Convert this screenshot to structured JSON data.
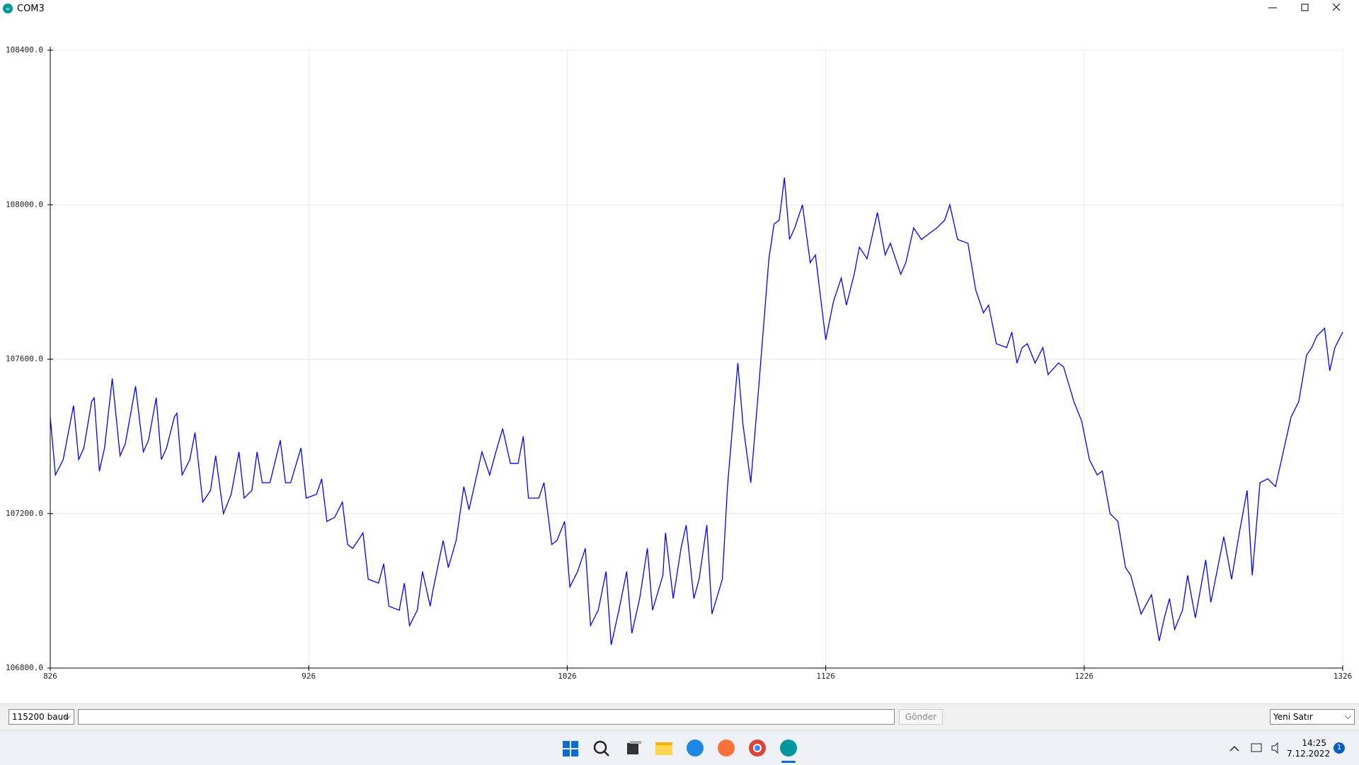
{
  "window": {
    "title": "COM3"
  },
  "chart_data": {
    "type": "line",
    "x": [
      826,
      828,
      831,
      835,
      837,
      839,
      842,
      843,
      845,
      847,
      850,
      853,
      855,
      859,
      862,
      864,
      867,
      869,
      871,
      874,
      875,
      877,
      880,
      882,
      885,
      888,
      890,
      893,
      896,
      899,
      901,
      904,
      906,
      908,
      911,
      915,
      917,
      919,
      923,
      925,
      929,
      931,
      933,
      936,
      939,
      941,
      943,
      947,
      949,
      953,
      955,
      957,
      961,
      963,
      965,
      968,
      970,
      973,
      974,
      978,
      980,
      983,
      986,
      988,
      993,
      996,
      998,
      1001,
      1004,
      1007,
      1009,
      1011,
      1015,
      1017,
      1020,
      1022,
      1025,
      1027,
      1030,
      1033,
      1035,
      1038,
      1041,
      1043,
      1046,
      1049,
      1051,
      1054,
      1057,
      1059,
      1063,
      1064,
      1067,
      1070,
      1072,
      1075,
      1077,
      1080,
      1082,
      1086,
      1088,
      1092,
      1094,
      1097,
      1100,
      1104,
      1106,
      1108,
      1110,
      1112,
      1114,
      1117,
      1120,
      1122,
      1126,
      1129,
      1132,
      1134,
      1137,
      1139,
      1142,
      1146,
      1149,
      1151,
      1155,
      1157,
      1160,
      1163,
      1165,
      1169,
      1172,
      1174,
      1177,
      1181,
      1184,
      1187,
      1189,
      1192,
      1196,
      1198,
      1200,
      1202,
      1204,
      1207,
      1210,
      1212,
      1216,
      1218,
      1222,
      1225,
      1228,
      1231,
      1233,
      1236,
      1239,
      1242,
      1244,
      1248,
      1252,
      1255,
      1257,
      1259,
      1261,
      1264,
      1266,
      1269,
      1273,
      1275,
      1280,
      1283,
      1286,
      1289,
      1291,
      1294,
      1297,
      1300,
      1303,
      1306,
      1309,
      1312,
      1314,
      1316,
      1319,
      1321,
      1323,
      1326
    ],
    "values": [
      107450,
      107300,
      107340,
      107480,
      107340,
      107370,
      107490,
      107500,
      107310,
      107370,
      107550,
      107350,
      107380,
      107530,
      107360,
      107390,
      107500,
      107340,
      107370,
      107450,
      107460,
      107300,
      107340,
      107410,
      107230,
      107260,
      107350,
      107200,
      107250,
      107360,
      107240,
      107260,
      107360,
      107280,
      107280,
      107390,
      107280,
      107280,
      107370,
      107240,
      107250,
      107290,
      107180,
      107190,
      107230,
      107120,
      107110,
      107150,
      107030,
      107020,
      107070,
      106960,
      106950,
      107020,
      106910,
      106950,
      107050,
      106960,
      107000,
      107130,
      107060,
      107130,
      107270,
      107210,
      107360,
      107300,
      107350,
      107420,
      107330,
      107330,
      107400,
      107240,
      107240,
      107280,
      107120,
      107130,
      107180,
      107010,
      107050,
      107110,
      106910,
      106950,
      107050,
      106860,
      106950,
      107050,
      106890,
      106980,
      107110,
      106950,
      107040,
      107150,
      106980,
      107110,
      107170,
      106980,
      107030,
      107170,
      106940,
      107030,
      107270,
      107590,
      107430,
      107280,
      107520,
      107860,
      107950,
      107960,
      108070,
      107910,
      107940,
      108000,
      107850,
      107870,
      107650,
      107750,
      107810,
      107740,
      107820,
      107890,
      107860,
      107980,
      107870,
      107900,
      107820,
      107850,
      107940,
      107910,
      107920,
      107940,
      107960,
      108000,
      107910,
      107900,
      107780,
      107720,
      107740,
      107640,
      107630,
      107670,
      107590,
      107630,
      107640,
      107590,
      107630,
      107560,
      107590,
      107580,
      107490,
      107440,
      107340,
      107300,
      107310,
      107200,
      107180,
      107060,
      107040,
      106940,
      106990,
      106870,
      106930,
      106980,
      106900,
      106950,
      107040,
      106930,
      107080,
      106970,
      107140,
      107030,
      107150,
      107260,
      107040,
      107280,
      107290,
      107270,
      107360,
      107450,
      107490,
      107610,
      107630,
      107660,
      107680,
      107570,
      107630,
      107670
    ],
    "color": "#0000ff",
    "xlim": [
      826,
      1326
    ],
    "xticks": [
      826,
      926,
      1026,
      1126,
      1226,
      1326
    ],
    "ylim": [
      106800,
      108400
    ],
    "yticks": [
      {
        "value": 106800,
        "label": "106800.0"
      },
      {
        "value": 107200,
        "label": "107200.0"
      },
      {
        "value": 107600,
        "label": "107600.0"
      },
      {
        "value": 108000,
        "label": "108000.0"
      },
      {
        "value": 108400,
        "label": "108400.0"
      }
    ],
    "grid": true
  },
  "controls": {
    "baud": "115200 baud",
    "send": "Gönder",
    "line_ending": "Yeni Satır"
  },
  "taskbar": {
    "time": "14:25",
    "date": "7.12.2022",
    "badge": "1"
  }
}
